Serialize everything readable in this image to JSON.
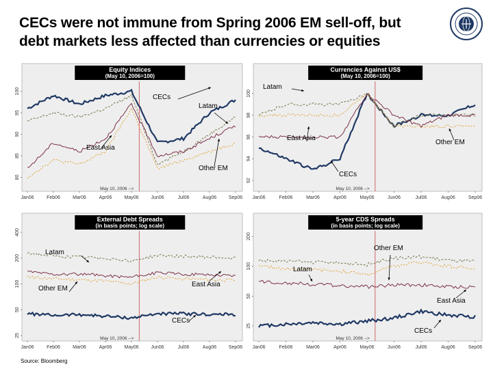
{
  "title_line1": "CECs were not immune from Spring 2006 EM sell-off, but",
  "title_line2": "debt markets less affected than currencies or equities",
  "logo_text": "INTERNATIONAL MONETARY FUND",
  "source": "Source: Bloomberg",
  "colors": {
    "header": "#000000",
    "axis_bg": "#eeeeee",
    "vline": "#cc6666",
    "cecs": "#1f3864",
    "latam": "#7a7a52",
    "east_asia": "#7b2f45",
    "other_em": "#e0a030"
  },
  "chart_data": [
    {
      "type": "line",
      "title": "Equity Indices",
      "subtitle": "(May 10, 2006=100)",
      "x_categories": [
        "Jan06",
        "Feb06",
        "Mar06",
        "Apr06",
        "May06",
        "Jun06",
        "Jul06",
        "Aug06",
        "Sep06"
      ],
      "y_ticks": [
        "100",
        "95",
        "90",
        "85",
        "80"
      ],
      "ylim": [
        78,
        102
      ],
      "log_scale": false,
      "event_label": "May 10, 2006 -->",
      "series": [
        {
          "name": "CECs",
          "values": [
            96,
            99,
            97,
            99,
            100,
            88,
            89,
            95,
            98
          ]
        },
        {
          "name": "Latam",
          "values": [
            93,
            95,
            94,
            96,
            99,
            83,
            86,
            90,
            94
          ]
        },
        {
          "name": "East Asia",
          "values": [
            82,
            88,
            86,
            89,
            97,
            85,
            86,
            89,
            92
          ]
        },
        {
          "name": "Other EM",
          "values": [
            80,
            84,
            83,
            86,
            96,
            82,
            84,
            86,
            88
          ]
        }
      ],
      "annotations": [
        "CECs",
        "Latam",
        "East Asia",
        "Other EM"
      ]
    },
    {
      "type": "line",
      "title": "Currencies Against US$",
      "subtitle": "(May 10, 2006=100)",
      "x_categories": [
        "Jan06",
        "Feb06",
        "Mar06",
        "Apr06",
        "May06",
        "Jun06",
        "Jul06",
        "Aug06",
        "Sep06"
      ],
      "y_ticks": [
        "100",
        "98",
        "96",
        "94",
        "92"
      ],
      "ylim": [
        91.5,
        101
      ],
      "log_scale": false,
      "event_label": "May 10, 2006 -->",
      "series": [
        {
          "name": "CECs",
          "values": [
            95,
            94,
            93,
            94,
            100,
            97,
            98,
            98,
            99
          ]
        },
        {
          "name": "Latam",
          "values": [
            98,
            99,
            99,
            99,
            100,
            97,
            98,
            98,
            98
          ]
        },
        {
          "name": "East Asia",
          "values": [
            96,
            96,
            96,
            96,
            100,
            98,
            97,
            98,
            98
          ]
        },
        {
          "name": "Other EM",
          "values": [
            98,
            98,
            98,
            98,
            100,
            97,
            97,
            97,
            97
          ]
        }
      ],
      "annotations": [
        "Latam",
        "East Asia",
        "Other EM",
        "CECs"
      ]
    },
    {
      "type": "line",
      "title": "External Debt Spreads",
      "subtitle": "(in basis points; log scale)",
      "x_categories": [
        "Jan06",
        "Feb06",
        "Mar06",
        "Apr06",
        "May06",
        "Jun06",
        "Jul06",
        "Aug06",
        "Sep06"
      ],
      "y_ticks": [
        "400",
        "200",
        "100",
        "50",
        "25"
      ],
      "ylim": [
        25,
        400
      ],
      "log_scale": true,
      "event_label": "May 10, 2006 -->",
      "series": [
        {
          "name": "CECs",
          "values": [
            45,
            43,
            44,
            42,
            40,
            45,
            45,
            44,
            44
          ]
        },
        {
          "name": "Latam",
          "values": [
            230,
            210,
            205,
            200,
            185,
            215,
            210,
            205,
            200
          ]
        },
        {
          "name": "East Asia",
          "values": [
            140,
            130,
            130,
            125,
            120,
            135,
            130,
            128,
            125
          ]
        },
        {
          "name": "Other EM",
          "values": [
            120,
            115,
            112,
            108,
            100,
            120,
            115,
            112,
            110
          ]
        }
      ],
      "annotations": [
        "Latam",
        "Other EM",
        "East Asia",
        "CECs"
      ]
    },
    {
      "type": "line",
      "title": "5-year CDS Spreads",
      "subtitle": "(in basis points; log scale)",
      "x_categories": [
        "Jan06",
        "Feb06",
        "Mar06",
        "Apr06",
        "May06",
        "Jun06",
        "Jul06",
        "Aug06",
        "Sep06"
      ],
      "y_ticks": [
        "200",
        "100",
        "50",
        "25"
      ],
      "ylim": [
        20,
        220
      ],
      "log_scale": true,
      "event_label": "May 10, 2006 -->",
      "series": [
        {
          "name": "CECs",
          "values": [
            25,
            26,
            27,
            26,
            28,
            30,
            35,
            32,
            31
          ]
        },
        {
          "name": "Latam",
          "values": [
            115,
            112,
            110,
            108,
            104,
            120,
            125,
            115,
            112
          ]
        },
        {
          "name": "East Asia",
          "values": [
            70,
            68,
            66,
            64,
            62,
            65,
            65,
            62,
            62
          ]
        },
        {
          "name": "Other EM",
          "values": [
            100,
            95,
            92,
            90,
            82,
            100,
            110,
            100,
            95
          ]
        }
      ],
      "annotations": [
        "Other EM",
        "Latam",
        "East Asia",
        "CECs"
      ]
    }
  ]
}
